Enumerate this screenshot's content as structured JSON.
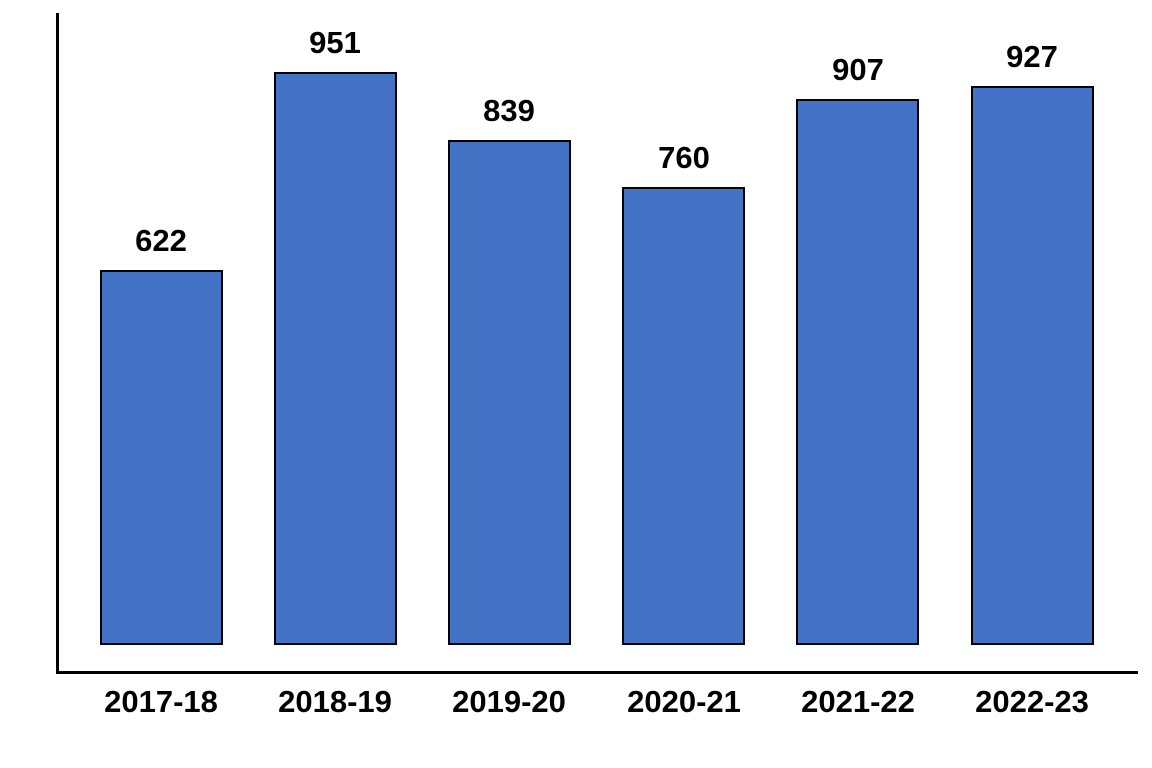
{
  "chart_data": {
    "type": "bar",
    "categories": [
      "2017-18",
      "2018-19",
      "2019-20",
      "2020-21",
      "2021-22",
      "2022-23"
    ],
    "values": [
      622,
      951,
      839,
      760,
      907,
      927
    ],
    "title": "",
    "xlabel": "",
    "ylabel": "",
    "ylim": [
      0,
      1050
    ],
    "grid": false,
    "legend": false,
    "data_labels": true,
    "bar_fill_color": "#4472C4",
    "bar_border_color": "#000000",
    "axis_color": "#000000",
    "label_color": "#000000",
    "background_color": "#FFFFFF"
  }
}
